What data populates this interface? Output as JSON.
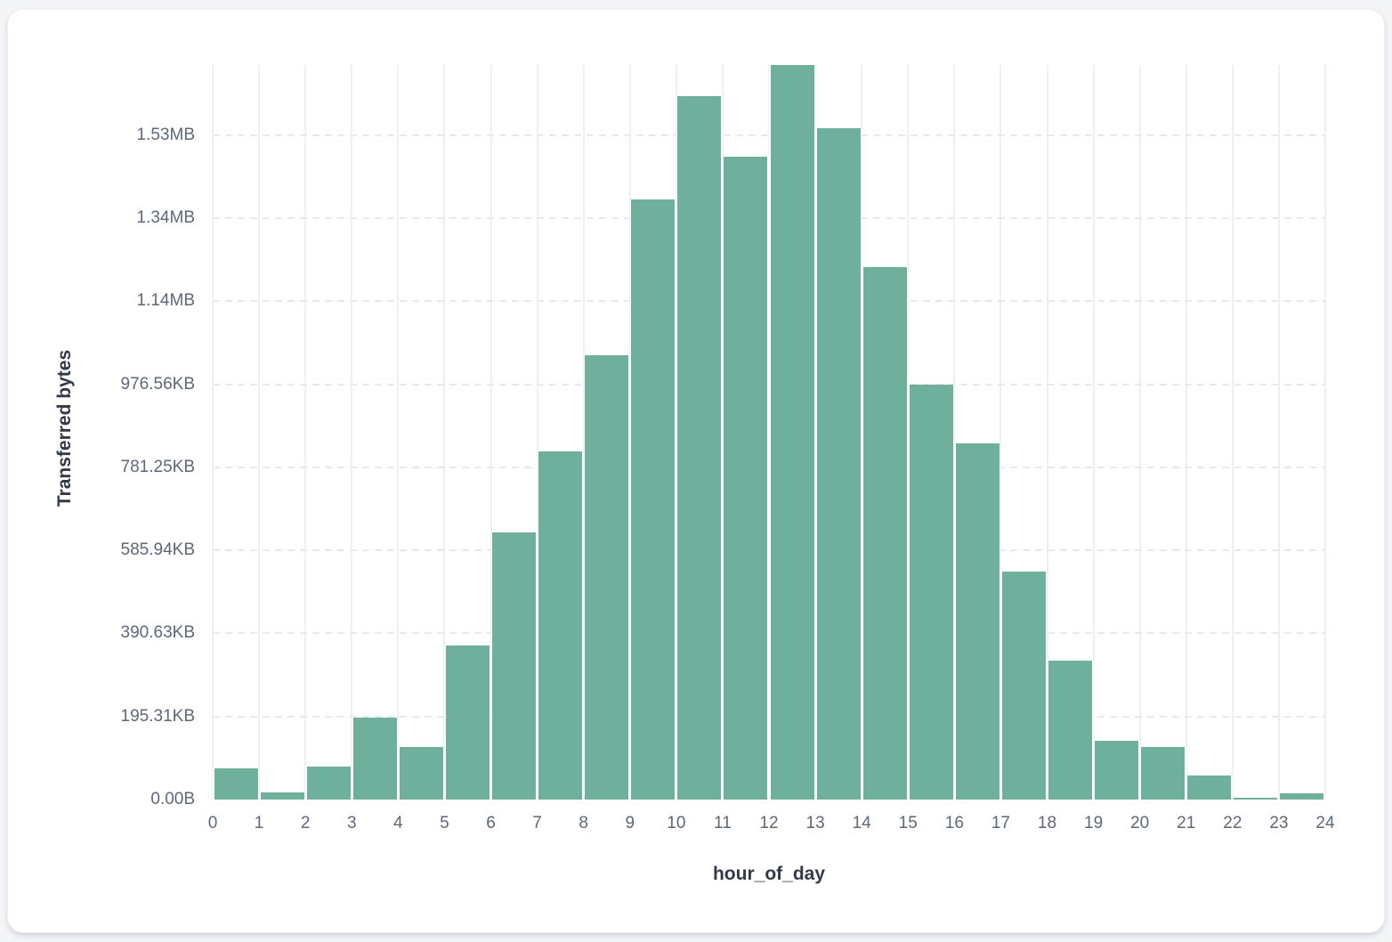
{
  "page": {
    "background_color": "#f4f5f7",
    "card_background_color": "#ffffff"
  },
  "chart_data": {
    "type": "bar",
    "title": "",
    "xlabel": "hour_of_day",
    "ylabel": "Transferred bytes",
    "series_name": "Transferred bytes",
    "bar_color": "#6fb09c",
    "grid": true,
    "legend_position": "none",
    "hours": [
      0,
      1,
      2,
      3,
      4,
      5,
      6,
      7,
      8,
      9,
      10,
      11,
      12,
      13,
      14,
      15,
      16,
      17,
      18,
      19,
      20,
      21,
      22,
      23
    ],
    "values_bytes": [
      76000,
      17500,
      80000,
      198000,
      127000,
      371000,
      643000,
      839000,
      1071000,
      1446000,
      1693000,
      1548000,
      1769000,
      1617000,
      1282000,
      1000000,
      858000,
      548000,
      335000,
      142000,
      127000,
      58000,
      5000,
      14000
    ],
    "xlim": [
      0,
      24
    ],
    "ylim": [
      0,
      1769000
    ],
    "x_ticks": [
      "0",
      "1",
      "2",
      "3",
      "4",
      "5",
      "6",
      "7",
      "8",
      "9",
      "10",
      "11",
      "12",
      "13",
      "14",
      "15",
      "16",
      "17",
      "18",
      "19",
      "20",
      "21",
      "22",
      "23",
      "24"
    ],
    "y_ticks": [
      {
        "value": 0,
        "label": "0.00B"
      },
      {
        "value": 200000,
        "label": "195.31KB"
      },
      {
        "value": 400000,
        "label": "390.63KB"
      },
      {
        "value": 600000,
        "label": "585.94KB"
      },
      {
        "value": 800000,
        "label": "781.25KB"
      },
      {
        "value": 1000000,
        "label": "976.56KB"
      },
      {
        "value": 1200000,
        "label": "1.14MB"
      },
      {
        "value": 1400000,
        "label": "1.34MB"
      },
      {
        "value": 1600000,
        "label": "1.53MB"
      }
    ]
  }
}
